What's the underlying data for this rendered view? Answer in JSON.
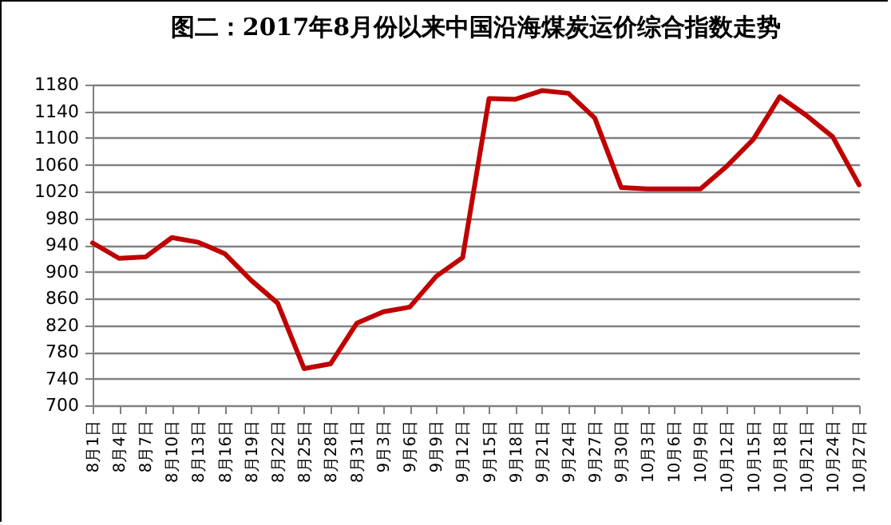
{
  "chart_data": {
    "type": "line",
    "title": "图二：2017年8月份以来中国沿海煤炭运价综合指数走势",
    "categories": [
      "8月1日",
      "8月4日",
      "8月7日",
      "8月10日",
      "8月13日",
      "8月16日",
      "8月19日",
      "8月22日",
      "8月25日",
      "8月28日",
      "8月31日",
      "9月3日",
      "9月6日",
      "9月9日",
      "9月12日",
      "9月15日",
      "9月18日",
      "9月21日",
      "9月24日",
      "9月27日",
      "9月30日",
      "10月3日",
      "10月6日",
      "10月9日",
      "10月12日",
      "10月15日",
      "10月18日",
      "10月21日",
      "10月24日",
      "10月27日"
    ],
    "series": [
      {
        "color": "#c00000",
        "values": [
          943,
          920,
          922,
          951,
          944,
          927,
          887,
          853,
          755,
          762,
          823,
          840,
          847,
          893,
          921,
          1159,
          1158,
          1171,
          1167,
          1130,
          1026,
          1024,
          1024,
          1024,
          1058,
          1098,
          1162,
          1134,
          1102,
          1030
        ]
      }
    ],
    "ylim": [
      700,
      1180
    ],
    "yticks": [
      700,
      740,
      780,
      820,
      860,
      900,
      940,
      980,
      1020,
      1060,
      1100,
      1140,
      1180
    ],
    "grid": "y",
    "marker": "none",
    "line_style": "solid"
  }
}
